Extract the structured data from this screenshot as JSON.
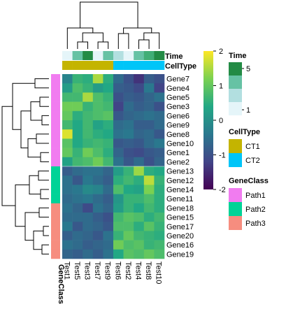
{
  "chart_data": {
    "type": "heatmap",
    "columns": [
      "Test1",
      "Test5",
      "Test3",
      "Test7",
      "Test9",
      "Test6",
      "Test2",
      "Test4",
      "Test8",
      "Test10"
    ],
    "rows": [
      "Gene7",
      "Gene4",
      "Gene5",
      "Gene3",
      "Gene6",
      "Gene9",
      "Gene8",
      "Gene10",
      "Gene1",
      "Gene2",
      "Gene13",
      "Gene12",
      "Gene14",
      "Gene11",
      "Gene18",
      "Gene15",
      "Gene17",
      "Gene20",
      "Gene16",
      "Gene19"
    ],
    "values": [
      [
        -0.2,
        0.6,
        0.5,
        1.5,
        0.5,
        -0.6,
        -1.0,
        -1.4,
        -0.8,
        -1.0
      ],
      [
        0.2,
        0.8,
        0.6,
        0.2,
        0.4,
        -0.8,
        -0.9,
        -1.1,
        -0.4,
        -1.2
      ],
      [
        0.7,
        0.7,
        1.5,
        0.8,
        0.6,
        -1.0,
        -0.8,
        -0.9,
        -0.7,
        -0.5
      ],
      [
        1.1,
        1.1,
        0.6,
        0.8,
        0.7,
        -1.2,
        -0.6,
        -0.8,
        -0.7,
        -1.0
      ],
      [
        1.0,
        0.5,
        0.7,
        0.8,
        0.9,
        -0.9,
        -0.7,
        -0.6,
        -0.5,
        -0.6
      ],
      [
        0.7,
        0.4,
        0.7,
        0.3,
        0.5,
        -0.6,
        -0.5,
        -0.8,
        -0.8,
        -0.6
      ],
      [
        1.8,
        0.4,
        0.7,
        0.5,
        0.4,
        -0.5,
        -0.4,
        -0.7,
        -0.6,
        -0.9
      ],
      [
        0.9,
        0.4,
        0.6,
        0.7,
        0.6,
        -0.9,
        -0.8,
        -0.9,
        -0.6,
        -0.4
      ],
      [
        1.0,
        0.6,
        1.1,
        0.8,
        0.5,
        -0.7,
        -1.0,
        -1.1,
        -0.9,
        -0.8
      ],
      [
        0.3,
        0.7,
        0.8,
        1.1,
        0.7,
        -0.5,
        -0.9,
        -0.6,
        -1.0,
        -0.7
      ],
      [
        -0.8,
        -0.6,
        -0.5,
        -0.5,
        -0.7,
        0.2,
        0.6,
        1.4,
        0.5,
        0.4
      ],
      [
        -0.5,
        -0.9,
        -0.4,
        -0.6,
        -0.8,
        0.5,
        0.7,
        0.5,
        1.6,
        0.6
      ],
      [
        -0.5,
        -0.4,
        -0.1,
        -0.2,
        -0.6,
        0.8,
        0.4,
        0.3,
        1.2,
        0.5
      ],
      [
        -0.6,
        -0.5,
        -0.4,
        -0.6,
        -0.8,
        0.1,
        0.6,
        0.6,
        0.8,
        0.5
      ],
      [
        -0.5,
        -0.7,
        -1.1,
        -0.5,
        -0.7,
        0.2,
        0.6,
        0.4,
        0.7,
        0.5
      ],
      [
        -0.6,
        -0.6,
        -0.6,
        -0.8,
        -1.0,
        0.7,
        0.9,
        0.8,
        0.5,
        0.7
      ],
      [
        -0.4,
        -0.9,
        -0.6,
        -0.7,
        -0.9,
        0.8,
        0.8,
        0.5,
        0.9,
        0.6
      ],
      [
        -0.8,
        -0.6,
        -0.7,
        -0.9,
        -0.5,
        0.6,
        1.0,
        0.7,
        0.6,
        0.5
      ],
      [
        -0.5,
        -0.6,
        -0.8,
        -0.7,
        -0.6,
        1.1,
        0.8,
        0.9,
        0.6,
        0.7
      ],
      [
        -0.7,
        -0.8,
        -0.6,
        -0.8,
        -0.5,
        0.4,
        0.9,
        0.8,
        1.0,
        0.8
      ]
    ],
    "colorscale": {
      "name": "viridis",
      "min": -2,
      "max": 2,
      "ticks": [
        2,
        1,
        0,
        -1,
        -2
      ],
      "stops": [
        "#440154",
        "#414487",
        "#2a788e",
        "#22a884",
        "#7ad151",
        "#fde725"
      ]
    },
    "column_annotations": {
      "Time": {
        "label": "Time",
        "values": [
          1,
          3,
          5,
          1,
          3,
          2,
          1,
          3,
          4,
          5
        ],
        "legend_ticks": [
          5,
          1
        ],
        "colors": {
          "1": "#e5f5f9",
          "2": "#b2dfe0",
          "3": "#66c2a4",
          "4": "#41ae76",
          "5": "#238b45"
        }
      },
      "CellType": {
        "label": "CellType",
        "values": [
          "CT1",
          "CT1",
          "CT1",
          "CT1",
          "CT1",
          "CT2",
          "CT2",
          "CT2",
          "CT2",
          "CT2"
        ],
        "legend": [
          {
            "name": "CT1",
            "color": "#c4b400"
          },
          {
            "name": "CT2",
            "color": "#00c5f8"
          }
        ]
      }
    },
    "row_annotation": {
      "label": "GeneClass",
      "values": [
        "Path1",
        "Path1",
        "Path1",
        "Path1",
        "Path1",
        "Path1",
        "Path1",
        "Path1",
        "Path1",
        "Path1",
        "Path2",
        "Path2",
        "Path2",
        "Path2",
        "Path3",
        "Path3",
        "Path3",
        "Path3",
        "Path3",
        "Path3"
      ],
      "legend": [
        {
          "name": "Path1",
          "color": "#f17cf0"
        },
        {
          "name": "Path2",
          "color": "#00d397"
        },
        {
          "name": "Path3",
          "color": "#f68d7f"
        }
      ]
    }
  }
}
